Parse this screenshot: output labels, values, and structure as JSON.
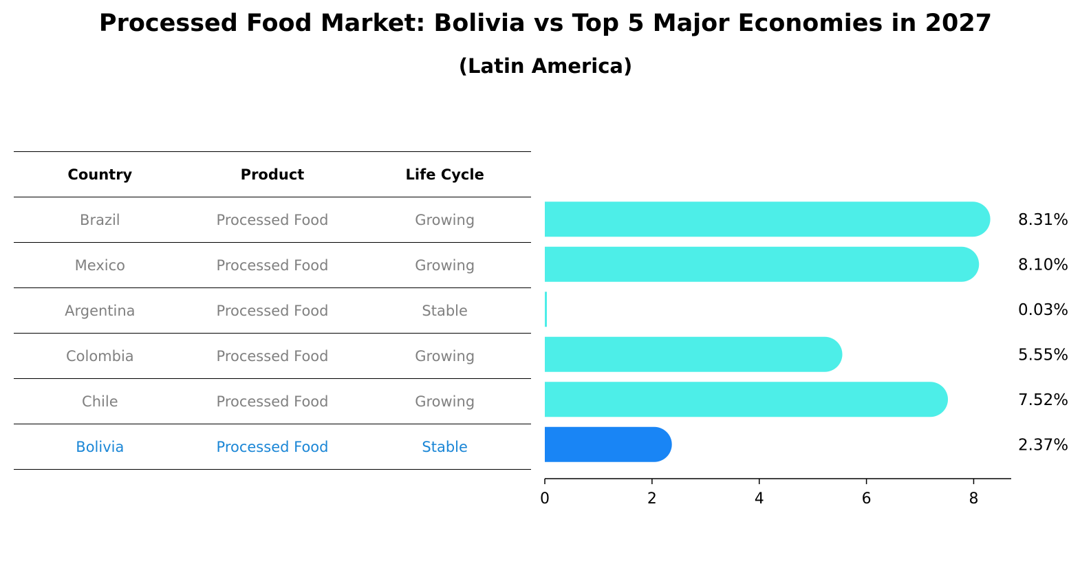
{
  "header": {
    "title": "Processed Food Market: Bolivia vs Top 5 Major Economies in 2027",
    "subtitle": "(Latin America)"
  },
  "table": {
    "columns": [
      "Country",
      "Product",
      "Life Cycle"
    ],
    "rows": [
      {
        "country": "Brazil",
        "product": "Processed Food",
        "life_cycle": "Growing"
      },
      {
        "country": "Mexico",
        "product": "Processed Food",
        "life_cycle": "Growing"
      },
      {
        "country": "Argentina",
        "product": "Processed Food",
        "life_cycle": "Stable"
      },
      {
        "country": "Colombia",
        "product": "Processed Food",
        "life_cycle": "Growing"
      },
      {
        "country": "Chile",
        "product": "Processed Food",
        "life_cycle": "Growing"
      },
      {
        "country": "Bolivia",
        "product": "Processed Food",
        "life_cycle": "Stable"
      }
    ]
  },
  "colors": {
    "bar": "#4deee8",
    "highlight_bar": "#1985f5",
    "highlight_text": "#1a86d6",
    "muted_text": "#808080"
  },
  "chart_data": {
    "type": "bar",
    "orientation": "horizontal",
    "categories": [
      "Brazil",
      "Mexico",
      "Argentina",
      "Colombia",
      "Chile",
      "Bolivia"
    ],
    "values": [
      8.31,
      8.1,
      0.03,
      5.55,
      7.52,
      2.37
    ],
    "value_labels": [
      "8.31%",
      "8.10%",
      "0.03%",
      "5.55%",
      "7.52%",
      "2.37%"
    ],
    "highlight": "Bolivia",
    "xlim": [
      0,
      8.7
    ],
    "xticks": [
      0,
      2,
      4,
      6,
      8
    ],
    "grid": false
  }
}
